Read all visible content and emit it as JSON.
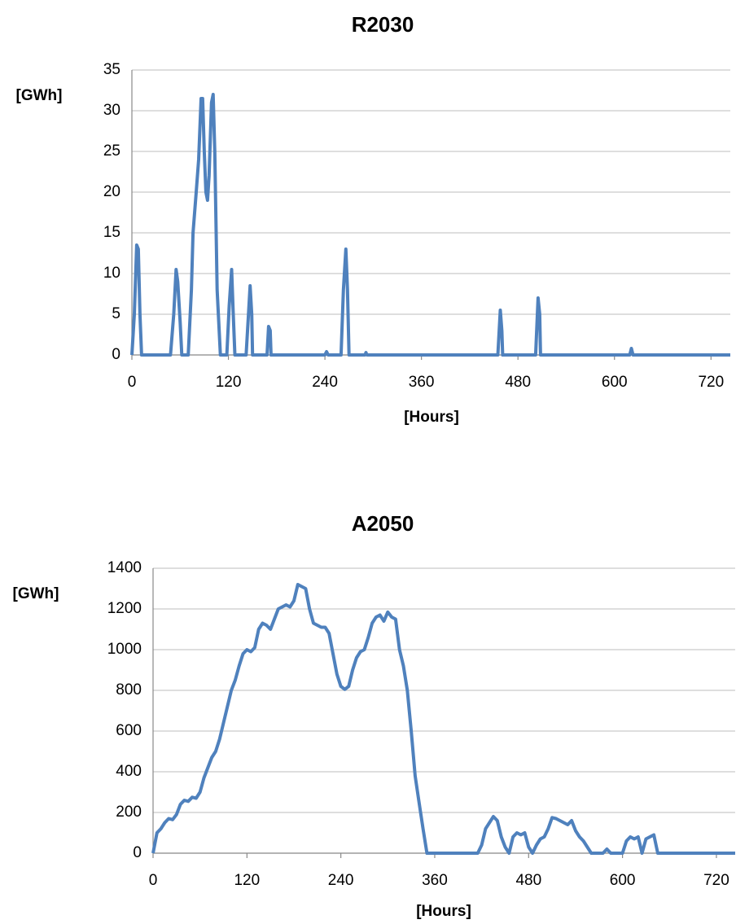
{
  "chart_data": [
    {
      "type": "line",
      "title": "R2030",
      "y_label": "[GWh]",
      "x_label": "[Hours]",
      "xlim": [
        0,
        744
      ],
      "xticks": [
        0,
        120,
        240,
        360,
        480,
        600,
        720
      ],
      "ylim": [
        0,
        35
      ],
      "yticks": [
        0,
        5,
        10,
        15,
        20,
        25,
        30,
        35
      ],
      "grid": true,
      "series": [
        {
          "color": "#4f81bd",
          "x": [
            0,
            3,
            6,
            8,
            10,
            12,
            48,
            52,
            55,
            57,
            60,
            62,
            70,
            74,
            76,
            80,
            83,
            86,
            88,
            90,
            92,
            94,
            96,
            99,
            101,
            103,
            106,
            108,
            110,
            118,
            121,
            124,
            126,
            128,
            142,
            145,
            147,
            149,
            150,
            168,
            170,
            172,
            173,
            240,
            242,
            244,
            260,
            263,
            266,
            268,
            270,
            290,
            291,
            292,
            455,
            458,
            460,
            461,
            502,
            505,
            507,
            508,
            619,
            621,
            623,
            744
          ],
          "values": [
            0,
            5,
            13.5,
            13,
            5,
            0,
            0,
            5,
            10.5,
            9,
            4,
            0,
            0,
            8,
            15,
            20,
            24,
            31.5,
            31.5,
            25,
            20,
            19,
            22,
            31,
            32,
            25,
            8,
            4,
            0,
            0,
            6,
            10.5,
            5,
            0,
            0,
            5,
            8.5,
            5,
            0,
            0,
            3.5,
            3,
            0,
            0,
            0.4,
            0,
            0,
            8,
            13,
            8,
            0,
            0,
            0.3,
            0,
            0,
            5.5,
            3,
            0,
            0,
            7,
            5,
            0,
            0,
            0.8,
            0,
            0
          ]
        }
      ]
    },
    {
      "type": "line",
      "title": "A2050",
      "y_label": "[GWh]",
      "x_label": "[Hours]",
      "xlim": [
        0,
        744
      ],
      "xticks": [
        0,
        120,
        240,
        360,
        480,
        600,
        720
      ],
      "ylim": [
        0,
        1400
      ],
      "yticks": [
        0,
        200,
        400,
        600,
        800,
        1000,
        1200,
        1400
      ],
      "grid": true,
      "series": [
        {
          "color": "#4f81bd",
          "x": [
            0,
            5,
            10,
            15,
            20,
            25,
            30,
            35,
            40,
            45,
            50,
            55,
            60,
            65,
            70,
            75,
            80,
            85,
            90,
            95,
            100,
            105,
            110,
            115,
            120,
            125,
            130,
            135,
            140,
            145,
            150,
            155,
            160,
            165,
            170,
            175,
            180,
            185,
            190,
            195,
            200,
            205,
            210,
            215,
            220,
            225,
            230,
            235,
            240,
            245,
            250,
            255,
            260,
            265,
            270,
            275,
            280,
            285,
            290,
            295,
            300,
            305,
            310,
            315,
            320,
            325,
            330,
            335,
            340,
            345,
            350,
            415,
            420,
            425,
            430,
            435,
            440,
            445,
            450,
            455,
            460,
            465,
            470,
            475,
            480,
            485,
            490,
            495,
            500,
            505,
            510,
            515,
            520,
            525,
            530,
            535,
            540,
            545,
            550,
            555,
            560,
            575,
            580,
            585,
            600,
            605,
            610,
            615,
            620,
            625,
            630,
            635,
            640,
            645,
            744
          ],
          "values": [
            0,
            100,
            120,
            150,
            170,
            165,
            190,
            240,
            260,
            255,
            275,
            270,
            300,
            370,
            420,
            470,
            500,
            560,
            640,
            720,
            800,
            850,
            920,
            980,
            1000,
            990,
            1010,
            1100,
            1130,
            1120,
            1100,
            1150,
            1200,
            1210,
            1220,
            1210,
            1240,
            1320,
            1310,
            1300,
            1200,
            1130,
            1120,
            1110,
            1110,
            1080,
            980,
            880,
            820,
            805,
            820,
            900,
            960,
            990,
            1000,
            1060,
            1130,
            1160,
            1170,
            1140,
            1185,
            1160,
            1150,
            1000,
            920,
            800,
            600,
            380,
            250,
            120,
            0,
            0,
            40,
            120,
            150,
            180,
            160,
            80,
            30,
            0,
            80,
            100,
            90,
            100,
            30,
            0,
            40,
            70,
            80,
            120,
            175,
            170,
            160,
            150,
            140,
            160,
            110,
            80,
            60,
            30,
            0,
            0,
            20,
            0,
            0,
            60,
            80,
            70,
            80,
            0,
            70,
            80,
            90,
            0,
            0
          ]
        }
      ]
    }
  ]
}
